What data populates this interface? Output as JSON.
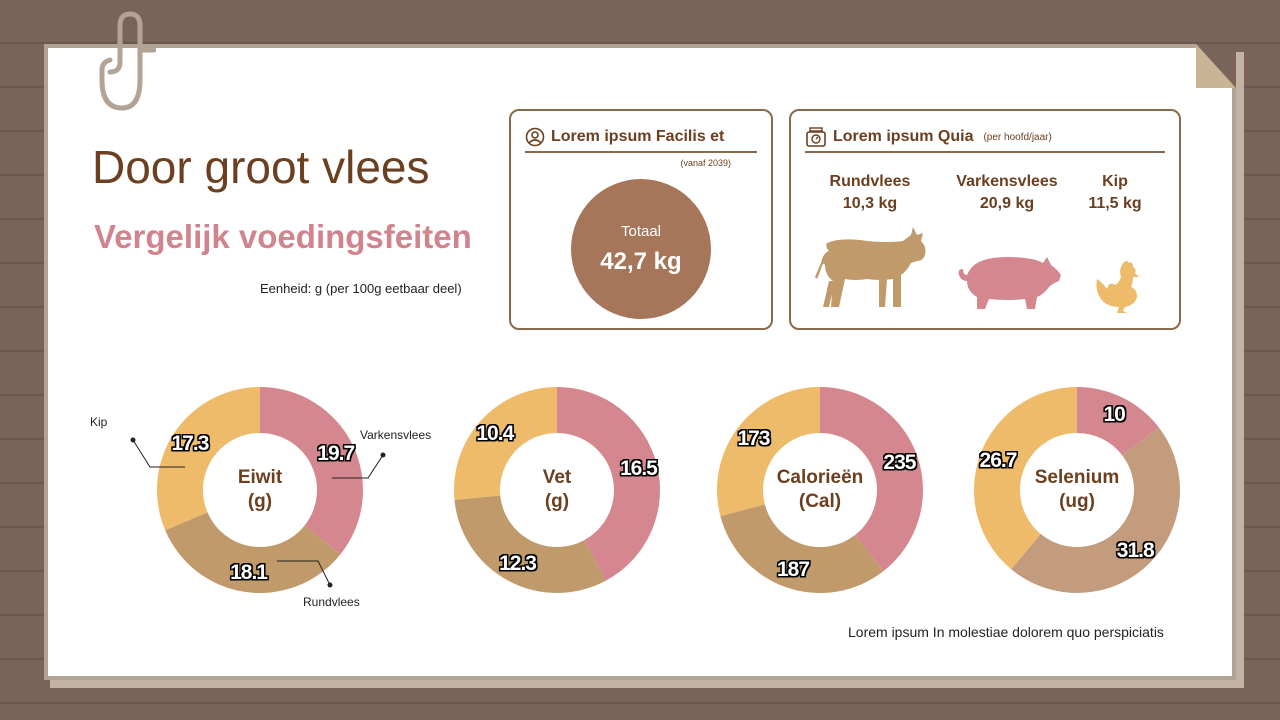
{
  "title": "Door groot vlees",
  "subtitle": "Vergelijk voedingsfeiten",
  "unit_note": "Eenheid: g (per 100g eetbaar deel)",
  "panel_total": {
    "heading": "Lorem ipsum Facilis et",
    "note": "(vanaf 2039)",
    "label": "Totaal",
    "value": "42,7 kg"
  },
  "panel_meat": {
    "heading": "Lorem ipsum Quia",
    "note": "(per hoofd/jaar)",
    "items": [
      {
        "name": "Rundvlees",
        "value": "10,3 kg"
      },
      {
        "name": "Varkensvlees",
        "value": "20,9 kg"
      },
      {
        "name": "Kip",
        "value": "11,5 kg"
      }
    ]
  },
  "colors": {
    "varkensvlees": "#d4878f",
    "rundvlees": "#c09a6b",
    "kip": "#eebb6b",
    "selenium_rund": "#c29c7c"
  },
  "callouts": {
    "kip": "Kip",
    "varkensvlees": "Varkensvlees",
    "rundvlees": "Rundvlees"
  },
  "footer": "Lorem ipsum In molestiae dolorem quo perspiciatis",
  "chart_data": [
    {
      "type": "pie",
      "title_line1": "Eiwit",
      "title_line2": "(g)",
      "categories": [
        "Varkensvlees",
        "Rundvlees",
        "Kip"
      ],
      "values": [
        19.7,
        18.1,
        17.3
      ],
      "labels": [
        "19.7",
        "18.1",
        "17.3"
      ]
    },
    {
      "type": "pie",
      "title_line1": "Vet",
      "title_line2": "(g)",
      "categories": [
        "Varkensvlees",
        "Rundvlees",
        "Kip"
      ],
      "values": [
        16.5,
        12.3,
        10.4
      ],
      "labels": [
        "16.5",
        "12.3",
        "10.4"
      ]
    },
    {
      "type": "pie",
      "title_line1": "Calorieën",
      "title_line2": "(Cal)",
      "categories": [
        "Varkensvlees",
        "Rundvlees",
        "Kip"
      ],
      "values": [
        235,
        187,
        173
      ],
      "labels": [
        "235",
        "187",
        "173"
      ]
    },
    {
      "type": "pie",
      "title_line1": "Selenium",
      "title_line2": "(ug)",
      "categories": [
        "Varkensvlees",
        "Rundvlees",
        "Kip"
      ],
      "values": [
        10,
        31.8,
        26.7
      ],
      "labels": [
        "10",
        "31.8",
        "26.7"
      ]
    }
  ]
}
